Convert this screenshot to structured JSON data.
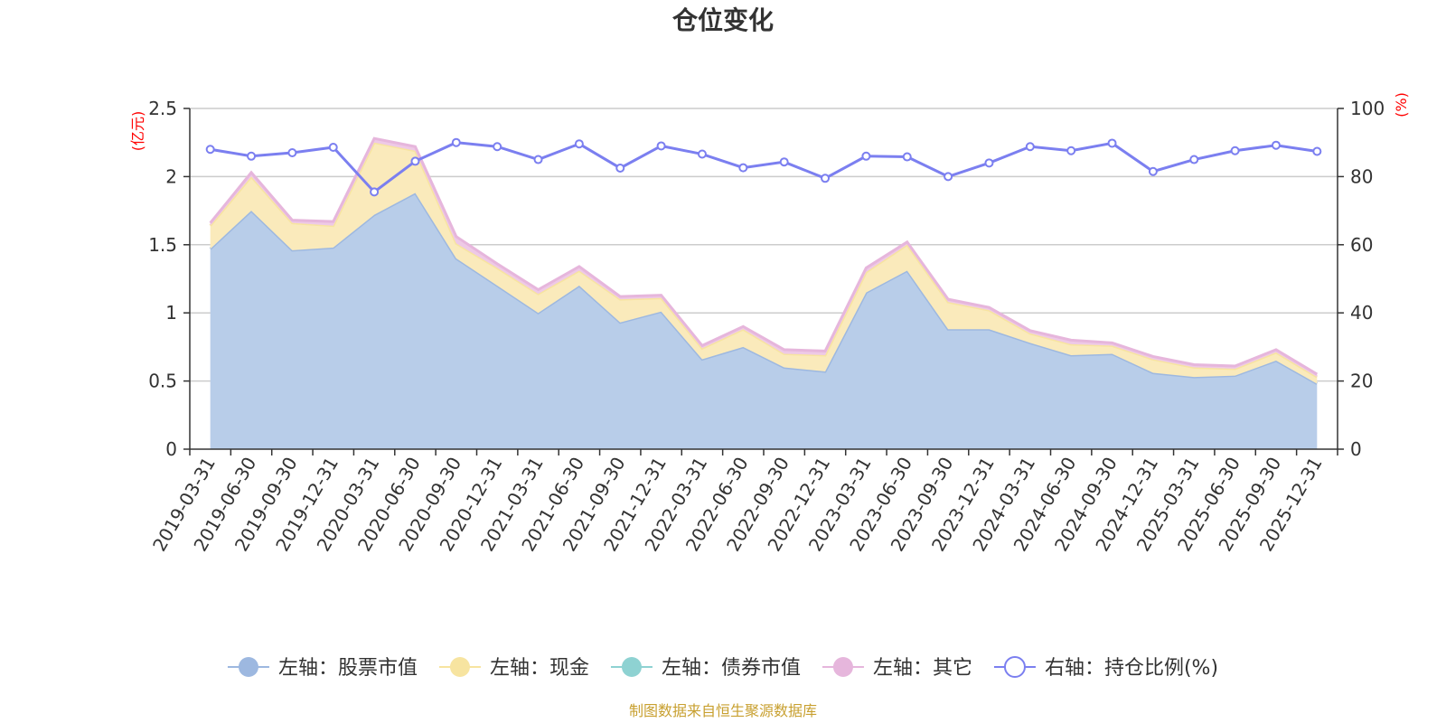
{
  "chart_data": {
    "type": "area",
    "title": "仓位变化",
    "footer": "制图数据来自恒生聚源数据库",
    "left_axis": {
      "unit": "(亿元)",
      "min": 0,
      "max": 2.5,
      "ticks": [
        0,
        0.5,
        1,
        1.5,
        2,
        2.5
      ],
      "tick_labels": [
        "0",
        "0.5",
        "1",
        "1.5",
        "2",
        "2.5"
      ]
    },
    "right_axis": {
      "unit": "(%)",
      "min": 0,
      "max": 100,
      "ticks": [
        0,
        20,
        40,
        60,
        80,
        100
      ],
      "tick_labels": [
        "0",
        "20",
        "40",
        "60",
        "80",
        "100"
      ]
    },
    "categories": [
      "2019-03-31",
      "2019-06-30",
      "2019-09-30",
      "2019-12-31",
      "2020-03-31",
      "2020-06-30",
      "2020-09-30",
      "2020-12-31",
      "2021-03-31",
      "2021-06-30",
      "2021-09-30",
      "2021-12-31",
      "2022-03-31",
      "2022-06-30",
      "2022-09-30",
      "2022-12-31",
      "2023-03-31",
      "2023-06-30",
      "2023-09-30",
      "2023-12-31",
      "2024-03-31",
      "2024-06-30",
      "2024-09-30",
      "2024-12-31",
      "2025-03-31",
      "2025-06-30",
      "2025-09-30",
      "2025-12-31"
    ],
    "series": [
      {
        "name": "左轴：股票市值",
        "axis": "left",
        "stack": true,
        "color": "#9db8e0",
        "fill": "#b8cde9",
        "values": [
          1.47,
          1.75,
          1.46,
          1.48,
          1.72,
          1.88,
          1.4,
          1.2,
          1.0,
          1.2,
          0.93,
          1.01,
          0.66,
          0.75,
          0.6,
          0.57,
          1.15,
          1.31,
          0.88,
          0.88,
          0.78,
          0.69,
          0.7,
          0.56,
          0.53,
          0.54,
          0.65,
          0.48
        ]
      },
      {
        "name": "左轴：现金",
        "axis": "left",
        "stack": true,
        "color": "#f7e4a0",
        "fill": "#faeabb",
        "values": [
          0.17,
          0.25,
          0.2,
          0.16,
          0.53,
          0.31,
          0.11,
          0.13,
          0.14,
          0.11,
          0.17,
          0.1,
          0.08,
          0.13,
          0.1,
          0.12,
          0.15,
          0.19,
          0.2,
          0.14,
          0.07,
          0.08,
          0.06,
          0.1,
          0.07,
          0.05,
          0.06,
          0.05
        ]
      },
      {
        "name": "左轴：债券市值",
        "axis": "left",
        "stack": true,
        "color": "#8ed2d2",
        "fill": "#a9dede",
        "values": [
          0,
          0,
          0,
          0,
          0,
          0,
          0,
          0,
          0,
          0,
          0,
          0,
          0,
          0,
          0,
          0,
          0,
          0,
          0,
          0,
          0,
          0,
          0,
          0,
          0,
          0,
          0,
          0
        ]
      },
      {
        "name": "左轴：其它",
        "axis": "left",
        "stack": true,
        "color": "#e6b6dc",
        "fill": "#eec9e6",
        "values": [
          0.02,
          0.03,
          0.02,
          0.03,
          0.03,
          0.03,
          0.05,
          0.03,
          0.03,
          0.03,
          0.02,
          0.02,
          0.02,
          0.02,
          0.03,
          0.03,
          0.03,
          0.02,
          0.02,
          0.02,
          0.02,
          0.03,
          0.02,
          0.02,
          0.02,
          0.02,
          0.02,
          0.02
        ]
      },
      {
        "name": "右轴：持仓比例(%)",
        "axis": "right",
        "stack": false,
        "color": "#7b7ff0",
        "values": [
          88.0,
          86.0,
          87.0,
          88.6,
          75.5,
          84.5,
          90.0,
          88.8,
          85.0,
          89.6,
          82.5,
          89.0,
          86.6,
          82.6,
          84.3,
          79.5,
          86.0,
          85.8,
          80.0,
          84.0,
          88.8,
          87.6,
          89.8,
          81.5,
          85.0,
          87.6,
          89.2,
          87.4
        ]
      }
    ],
    "legend": [
      {
        "label": "左轴：股票市值",
        "marker": "filled-circle",
        "color": "#9db8e0"
      },
      {
        "label": "左轴：现金",
        "marker": "filled-circle",
        "color": "#f7e4a0"
      },
      {
        "label": "左轴：债券市值",
        "marker": "filled-circle",
        "color": "#8ed2d2"
      },
      {
        "label": "左轴：其它",
        "marker": "filled-circle",
        "color": "#e6b6dc"
      },
      {
        "label": "右轴：持仓比例(%)",
        "marker": "hollow-circle",
        "color": "#7b7ff0"
      }
    ],
    "legend_position": "bottom-center",
    "grid": true,
    "footer_color": "#c8a030",
    "unit_color": "#ff0000"
  }
}
